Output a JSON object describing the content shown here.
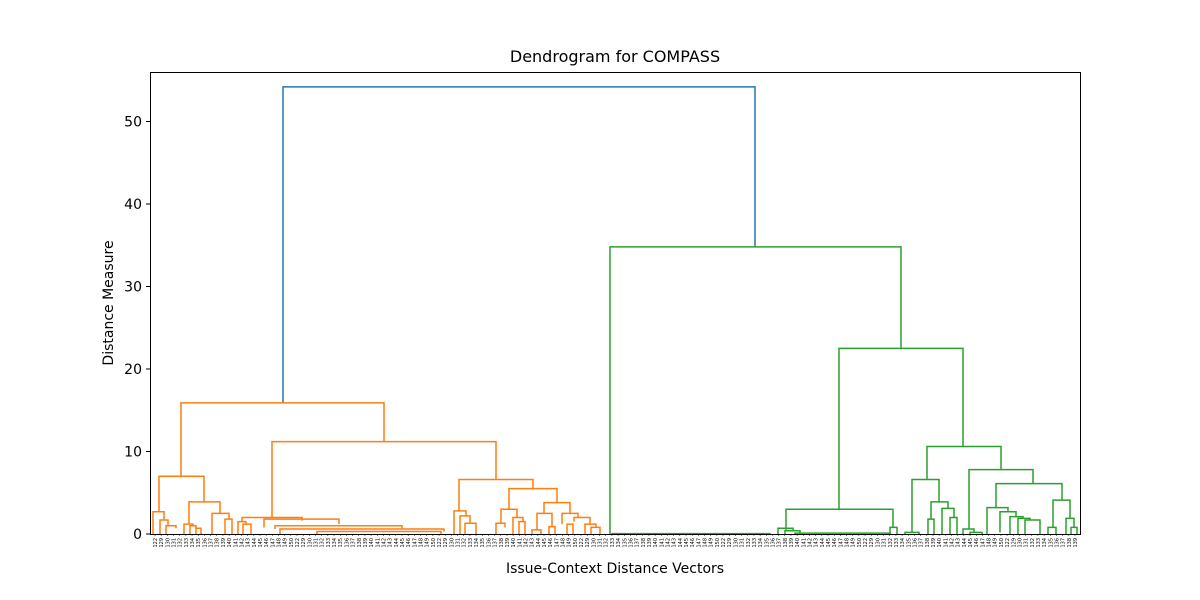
{
  "chart_data": {
    "type": "dendrogram",
    "title": "Dendrogram for COMPASS",
    "xlabel": "Issue-Context Distance Vectors",
    "ylabel": "Distance Measure",
    "ylim": [
      0,
      56
    ],
    "yticks": [
      0,
      10,
      20,
      30,
      40,
      50
    ],
    "grid": false,
    "colors": {
      "link_above_threshold": "#1f77b4",
      "cluster_1": "#ff7f0e",
      "cluster_2": "#2ca02c"
    },
    "leaf_labels_visible_partial": [
      "122",
      "129",
      "130",
      "131",
      "132",
      "133",
      "134",
      "135",
      "136",
      "137",
      "138",
      "139",
      "140",
      "141",
      "142",
      "143",
      "144",
      "145",
      "146",
      "147",
      "148",
      "149",
      "150"
    ],
    "merges": [
      {
        "clusters": [
          "orange",
          "green"
        ],
        "distance": 54.2,
        "color": "#1f77b4"
      },
      {
        "clusters": [
          "orange-left",
          "orange-right"
        ],
        "distance": 15.9,
        "color": "#ff7f0e"
      },
      {
        "clusters": [
          "orange-mid",
          "orange-far-right"
        ],
        "distance": 11.2,
        "color": "#ff7f0e"
      },
      {
        "clusters": [
          "orange-a",
          "orange-b"
        ],
        "distance": 7.0,
        "color": "#ff7f0e"
      },
      {
        "clusters": [
          "orange-c",
          "orange-d"
        ],
        "distance": 6.6,
        "color": "#ff7f0e"
      },
      {
        "clusters": [
          "orange-e",
          "orange-f"
        ],
        "distance": 5.5,
        "color": "#ff7f0e"
      },
      {
        "clusters": [
          "green-flat",
          "green-right"
        ],
        "distance": 34.8,
        "color": "#2ca02c"
      },
      {
        "clusters": [
          "green-sub1",
          "green-sub2"
        ],
        "distance": 22.5,
        "color": "#2ca02c"
      },
      {
        "clusters": [
          "green-g",
          "green-h"
        ],
        "distance": 10.6,
        "color": "#2ca02c"
      },
      {
        "clusters": [
          "green-i",
          "green-j"
        ],
        "distance": 7.8,
        "color": "#2ca02c"
      },
      {
        "clusters": [
          "green-k",
          "green-l"
        ],
        "distance": 6.6,
        "color": "#2ca02c"
      },
      {
        "clusters": [
          "green-m",
          "green-n"
        ],
        "distance": 6.1,
        "color": "#2ca02c"
      },
      {
        "clusters": [
          "green-o",
          "green-p"
        ],
        "distance": 3.0,
        "color": "#2ca02c"
      }
    ]
  }
}
